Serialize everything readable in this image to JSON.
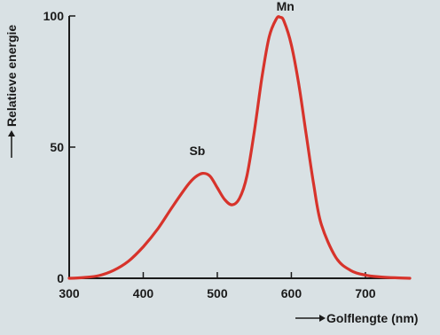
{
  "chart_data": {
    "type": "line",
    "xlabel": "Golflengte (nm)",
    "ylabel": "Relatieve energie",
    "xlim": [
      300,
      760
    ],
    "ylim": [
      0,
      100
    ],
    "xticks": [
      300,
      400,
      500,
      600,
      700
    ],
    "yticks": [
      0,
      50,
      100
    ],
    "grid": false,
    "series": [
      {
        "x": [
          300,
          320,
          340,
          360,
          380,
          400,
          420,
          440,
          460,
          470,
          480,
          490,
          500,
          510,
          520,
          530,
          540,
          550,
          560,
          570,
          580,
          585,
          590,
          600,
          610,
          620,
          630,
          640,
          660,
          680,
          700,
          720,
          740,
          760
        ],
        "y": [
          0,
          0.3,
          1,
          3,
          6.5,
          12,
          19,
          27.5,
          35.5,
          38.5,
          40,
          39,
          34.5,
          30,
          28,
          30.5,
          39,
          56,
          76,
          92,
          99,
          99.5,
          98,
          89,
          74,
          55,
          36,
          21,
          8,
          3,
          1.2,
          0.5,
          0.2,
          0
        ]
      }
    ],
    "annotations": [
      {
        "text": "Sb",
        "x": 473,
        "y": 47
      },
      {
        "text": "Mn",
        "x": 592,
        "y": 102
      }
    ],
    "line_color": "#d7332b"
  }
}
